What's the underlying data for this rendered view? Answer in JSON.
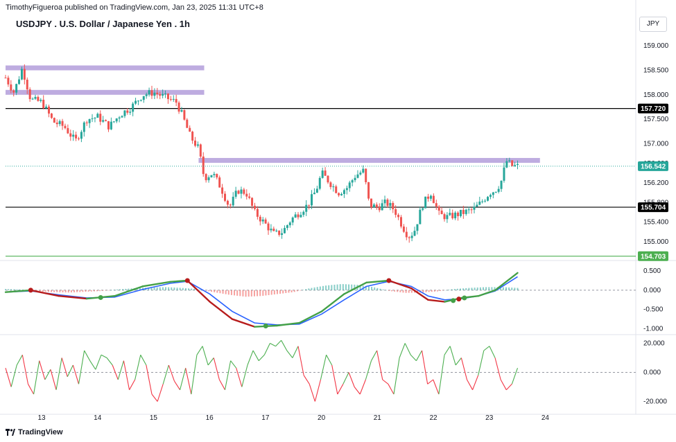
{
  "header": {
    "publisher": "TimothyFigueroa published on TradingView.com, Jan 23, 2025 11:31 UTC+8",
    "title": "USDJPY . U.S. Dollar / Japanese Yen . 1h",
    "currency": "JPY"
  },
  "footer": {
    "brand": "TradingView"
  },
  "colors": {
    "up": "#26a69a",
    "down": "#ef5350",
    "zone": "#b39ddb",
    "level": "#000000",
    "support": "#4caf50",
    "blue": "#2962ff",
    "green": "#43a047",
    "red": "#b71c1c",
    "hist_up": "#26a69a",
    "hist_down": "#ef5350"
  },
  "chart_data": [
    {
      "type": "candlestick",
      "title": "USDJPY . U.S. Dollar / Japanese Yen . 1h",
      "ylim": [
        154.7,
        159.3
      ],
      "yticks": [
        "159.000",
        "158.500",
        "158.000",
        "157.500",
        "157.000",
        "156.600",
        "156.200",
        "155.800",
        "155.400",
        "155.000"
      ],
      "yticks_values": [
        159.0,
        158.5,
        158.0,
        157.5,
        157.0,
        156.6,
        156.2,
        155.8,
        155.4,
        155.0
      ],
      "xticks": [
        "13",
        "14",
        "15",
        "16",
        "17",
        "20",
        "21",
        "22",
        "23",
        "24"
      ],
      "xticks_values": [
        13,
        14,
        15,
        16,
        17,
        18,
        19,
        20,
        21,
        22
      ],
      "xlim": [
        12.35,
        23.6
      ],
      "last_x": 21.5,
      "series_close": [
        [
          12.35,
          158.35
        ],
        [
          12.5,
          158.05
        ],
        [
          12.65,
          158.55
        ],
        [
          12.8,
          157.9
        ],
        [
          13.0,
          157.85
        ],
        [
          13.2,
          157.45
        ],
        [
          13.4,
          157.35
        ],
        [
          13.6,
          157.05
        ],
        [
          13.8,
          157.5
        ],
        [
          14.0,
          157.55
        ],
        [
          14.2,
          157.35
        ],
        [
          14.4,
          157.6
        ],
        [
          14.6,
          157.75
        ],
        [
          14.8,
          158.0
        ],
        [
          15.0,
          158.05
        ],
        [
          15.2,
          157.95
        ],
        [
          15.4,
          157.85
        ],
        [
          15.5,
          157.6
        ],
        [
          15.65,
          157.15
        ],
        [
          15.8,
          156.9
        ],
        [
          15.9,
          156.3
        ],
        [
          16.05,
          156.4
        ],
        [
          16.2,
          156.1
        ],
        [
          16.35,
          155.7
        ],
        [
          16.5,
          156.05
        ],
        [
          16.65,
          156.0
        ],
        [
          16.8,
          155.6
        ],
        [
          17.0,
          155.35
        ],
        [
          17.15,
          155.15
        ],
        [
          17.3,
          155.2
        ],
        [
          17.45,
          155.45
        ],
        [
          17.6,
          155.6
        ],
        [
          17.75,
          155.75
        ],
        [
          17.9,
          156.05
        ],
        [
          18.0,
          156.4
        ],
        [
          18.15,
          156.2
        ],
        [
          18.3,
          156.0
        ],
        [
          18.45,
          156.1
        ],
        [
          18.6,
          156.35
        ],
        [
          18.75,
          156.45
        ],
        [
          18.85,
          155.75
        ],
        [
          19.0,
          155.7
        ],
        [
          19.15,
          155.8
        ],
        [
          19.3,
          155.65
        ],
        [
          19.45,
          155.3
        ],
        [
          19.55,
          155.1
        ],
        [
          19.65,
          155.2
        ],
        [
          19.8,
          155.75
        ],
        [
          19.95,
          156.0
        ],
        [
          20.1,
          155.55
        ],
        [
          20.25,
          155.5
        ],
        [
          20.4,
          155.55
        ],
        [
          20.55,
          155.6
        ],
        [
          20.7,
          155.65
        ],
        [
          20.85,
          155.8
        ],
        [
          21.0,
          156.0
        ],
        [
          21.1,
          156.05
        ],
        [
          21.2,
          156.2
        ],
        [
          21.3,
          156.65
        ],
        [
          21.4,
          156.55
        ],
        [
          21.5,
          156.54
        ]
      ],
      "levels": [
        {
          "label": "157.720",
          "value": 157.72,
          "color": "#000000"
        },
        {
          "label": "155.704",
          "value": 155.704,
          "color": "#000000"
        },
        {
          "label": "154.703",
          "value": 154.703,
          "color": "#4caf50"
        }
      ],
      "last_price": {
        "label": "156.542",
        "value": 156.542,
        "color": "#26a69a"
      },
      "zones": [
        {
          "x0": 12.35,
          "x1": 15.9,
          "value": 158.55
        },
        {
          "x0": 12.35,
          "x1": 15.9,
          "value": 158.05
        },
        {
          "x0": 15.8,
          "x1": 21.9,
          "value": 156.66
        }
      ]
    },
    {
      "type": "line",
      "name": "MACD",
      "ylim": [
        -1.1,
        0.7
      ],
      "yticks": [
        "0.500",
        "0.000",
        "-0.500",
        "-1.000"
      ],
      "yticks_values": [
        0.5,
        0.0,
        -0.5,
        -1.0
      ],
      "series": [
        {
          "name": "",
          "values": [
            [
              12.35,
              -0.05
            ],
            [
              12.8,
              0.0
            ],
            [
              13.3,
              -0.15
            ],
            [
              13.8,
              -0.22
            ],
            [
              14.3,
              -0.15
            ],
            [
              14.8,
              0.1
            ],
            [
              15.3,
              0.22
            ],
            [
              15.6,
              0.25
            ],
            [
              16.0,
              -0.3
            ],
            [
              16.4,
              -0.75
            ],
            [
              16.8,
              -0.95
            ],
            [
              17.2,
              -0.92
            ],
            [
              17.6,
              -0.85
            ],
            [
              18.0,
              -0.55
            ],
            [
              18.4,
              -0.1
            ],
            [
              18.8,
              0.2
            ],
            [
              19.2,
              0.25
            ],
            [
              19.6,
              0.05
            ],
            [
              19.9,
              -0.25
            ],
            [
              20.2,
              -0.3
            ],
            [
              20.5,
              -0.2
            ],
            [
              20.8,
              -0.15
            ],
            [
              21.1,
              0.0
            ],
            [
              21.5,
              0.45
            ]
          ]
        },
        {
          "name": "",
          "values": [
            [
              12.35,
              -0.05
            ],
            [
              12.8,
              -0.02
            ],
            [
              13.3,
              -0.12
            ],
            [
              13.8,
              -0.2
            ],
            [
              14.3,
              -0.18
            ],
            [
              14.8,
              0.02
            ],
            [
              15.3,
              0.18
            ],
            [
              15.6,
              0.23
            ],
            [
              16.0,
              -0.1
            ],
            [
              16.4,
              -0.55
            ],
            [
              16.8,
              -0.85
            ],
            [
              17.2,
              -0.9
            ],
            [
              17.6,
              -0.88
            ],
            [
              18.0,
              -0.62
            ],
            [
              18.4,
              -0.25
            ],
            [
              18.8,
              0.1
            ],
            [
              19.2,
              0.23
            ],
            [
              19.6,
              0.1
            ],
            [
              19.9,
              -0.15
            ],
            [
              20.2,
              -0.25
            ],
            [
              20.5,
              -0.22
            ],
            [
              20.8,
              -0.15
            ],
            [
              21.1,
              -0.02
            ],
            [
              21.5,
              0.35
            ]
          ]
        }
      ],
      "histogram": [
        0.03,
        0.02,
        -0.03,
        -0.05,
        -0.06,
        -0.04,
        -0.02,
        0.02,
        0.05,
        0.07,
        0.08,
        0.06,
        0.03,
        -0.05,
        -0.12,
        -0.17,
        -0.15,
        -0.1,
        -0.05,
        0.05,
        0.12,
        0.16,
        0.14,
        0.08,
        -0.02,
        -0.07,
        -0.06,
        -0.03,
        0.03,
        0.06,
        0.08,
        0.08,
        0.06
      ]
    },
    {
      "type": "line",
      "name": "Oscillator",
      "ylim": [
        -25,
        25
      ],
      "yticks": [
        "20.000",
        "0.000",
        "-20.000"
      ],
      "yticks_values": [
        20,
        0,
        -20
      ],
      "values": [
        3,
        -10,
        5,
        12,
        -8,
        -15,
        8,
        -5,
        2,
        -12,
        10,
        -3,
        5,
        -8,
        15,
        8,
        2,
        12,
        10,
        5,
        -5,
        8,
        -12,
        -5,
        12,
        5,
        -15,
        -20,
        -8,
        5,
        -6,
        -12,
        3,
        -15,
        12,
        18,
        5,
        10,
        -5,
        -12,
        8,
        3,
        -10,
        5,
        15,
        8,
        12,
        20,
        18,
        22,
        15,
        10,
        18,
        -2,
        -8,
        -20,
        -5,
        12,
        5,
        -15,
        -8,
        0,
        -10,
        -15,
        -5,
        8,
        15,
        -5,
        -8,
        -15,
        10,
        20,
        12,
        8,
        15,
        -8,
        -5,
        -15,
        12,
        18,
        5,
        10,
        -5,
        -12,
        -2,
        15,
        18,
        10,
        -5,
        -12,
        -8,
        3
      ]
    }
  ]
}
